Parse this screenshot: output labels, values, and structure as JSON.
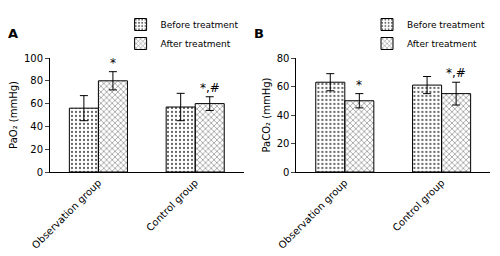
{
  "chart_data": [
    {
      "type": "bar",
      "title": "A",
      "categories": [
        "Observation group",
        "Control group"
      ],
      "y_label": "PaO₂ (mmHg)",
      "series": [
        {
          "name": "Before treatment",
          "color": "#f2f2f2",
          "marker": "dots",
          "values": [
            56,
            57
          ],
          "errors": [
            11,
            12
          ]
        },
        {
          "name": "After treatment",
          "color": "#d9d4a4",
          "marker": "crosshatch",
          "values": [
            80,
            60
          ],
          "errors": [
            8,
            6
          ]
        }
      ],
      "annotations": [
        {
          "category": "Observation group",
          "series": "After treatment",
          "text": "*"
        },
        {
          "category": "Control group",
          "series": "After treatment",
          "text": "*,#"
        }
      ],
      "ylim": [
        0,
        100
      ],
      "yticks": [
        0,
        20,
        40,
        60,
        80,
        100
      ],
      "grid": false,
      "legend": "top right"
    },
    {
      "type": "bar",
      "title": "B",
      "categories": [
        "Observation group",
        "Control group"
      ],
      "y_label": "PaCO₂ (mmHg)",
      "series": [
        {
          "name": "Before treatment",
          "color": "#f2f2f2",
          "marker": "dots",
          "values": [
            63,
            61
          ],
          "errors": [
            6,
            6
          ]
        },
        {
          "name": "After treatment",
          "color": "#d9d4a4",
          "marker": "crosshatch",
          "values": [
            50,
            55
          ],
          "errors": [
            5,
            8
          ]
        }
      ],
      "annotations": [
        {
          "category": "Observation group",
          "series": "After treatment",
          "text": "*"
        },
        {
          "category": "Control group",
          "series": "After treatment",
          "text": "*,#"
        }
      ],
      "ylim": [
        0,
        80
      ],
      "yticks": [
        0,
        20,
        40,
        60,
        80
      ],
      "grid": false,
      "legend": "top right"
    }
  ]
}
